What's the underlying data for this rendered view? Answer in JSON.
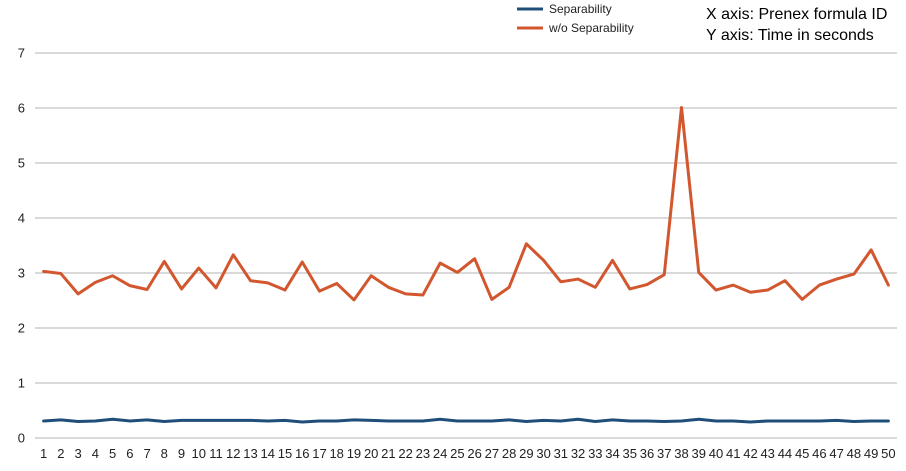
{
  "chart_data": {
    "type": "line",
    "title": "",
    "xlabel": "",
    "ylabel": "",
    "annotations": [
      "X axis: Prenex formula ID",
      "Y axis: Time in seconds"
    ],
    "grid": true,
    "grid_axis": "y",
    "legend_position": "top-center",
    "ylim": [
      0,
      7
    ],
    "y_ticks": [
      0,
      1,
      2,
      3,
      4,
      5,
      6,
      7
    ],
    "x": [
      1,
      2,
      3,
      4,
      5,
      6,
      7,
      8,
      9,
      10,
      11,
      12,
      13,
      14,
      15,
      16,
      17,
      18,
      19,
      20,
      21,
      22,
      23,
      24,
      25,
      26,
      27,
      28,
      29,
      30,
      31,
      32,
      33,
      34,
      35,
      36,
      37,
      38,
      39,
      40,
      41,
      42,
      43,
      44,
      45,
      46,
      47,
      48,
      49,
      50
    ],
    "series": [
      {
        "name": "Separability",
        "color": "#1f4e79",
        "values": [
          0.31,
          0.33,
          0.3,
          0.31,
          0.34,
          0.31,
          0.33,
          0.3,
          0.32,
          0.32,
          0.32,
          0.32,
          0.32,
          0.31,
          0.32,
          0.29,
          0.31,
          0.31,
          0.33,
          0.32,
          0.31,
          0.31,
          0.31,
          0.34,
          0.31,
          0.31,
          0.31,
          0.33,
          0.3,
          0.32,
          0.31,
          0.34,
          0.3,
          0.33,
          0.31,
          0.31,
          0.3,
          0.31,
          0.34,
          0.31,
          0.31,
          0.29,
          0.31,
          0.31,
          0.31,
          0.31,
          0.32,
          0.3,
          0.31,
          0.31
        ]
      },
      {
        "name": "w/o Separability",
        "color": "#d2572f",
        "values": [
          3.03,
          2.99,
          2.62,
          2.83,
          2.95,
          2.77,
          2.7,
          3.21,
          2.71,
          3.09,
          2.73,
          3.33,
          2.86,
          2.82,
          2.69,
          3.2,
          2.67,
          2.81,
          2.51,
          2.95,
          2.74,
          2.62,
          2.6,
          3.18,
          3.01,
          3.26,
          2.52,
          2.74,
          3.53,
          3.23,
          2.84,
          2.89,
          2.74,
          3.23,
          2.71,
          2.79,
          2.97,
          6.01,
          3.01,
          2.69,
          2.78,
          2.65,
          2.69,
          2.86,
          2.52,
          2.78,
          2.89,
          2.98,
          3.42,
          2.78
        ]
      }
    ]
  }
}
